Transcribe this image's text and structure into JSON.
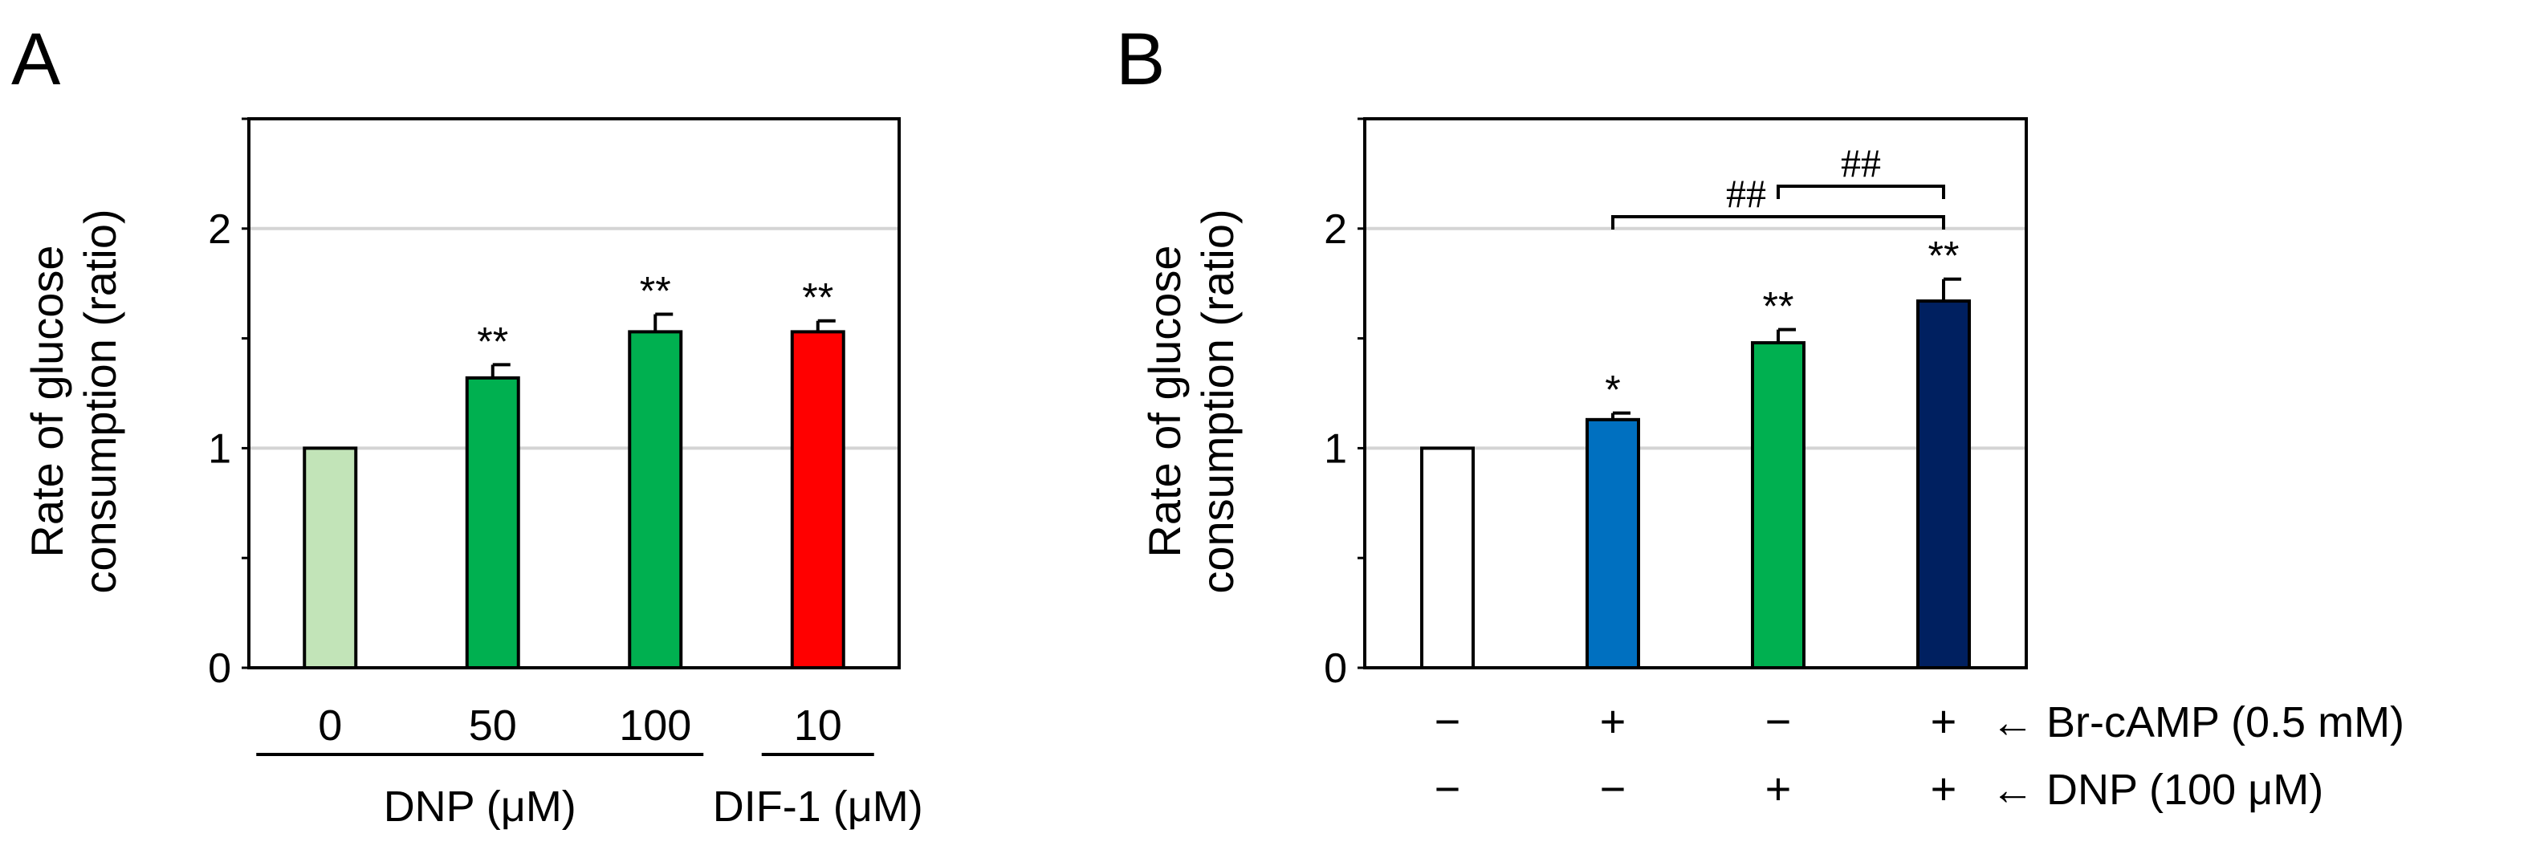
{
  "chart_data": [
    {
      "panel": "A",
      "type": "bar",
      "ylabel_lines": [
        "Rate of glucose",
        "consumption (ratio)"
      ],
      "ylim": [
        0,
        2.5
      ],
      "yticks": [
        0,
        1,
        2
      ],
      "grid": true,
      "categories": [
        "0",
        "50",
        "100",
        "10"
      ],
      "values": [
        1.0,
        1.32,
        1.53,
        1.53
      ],
      "errors": [
        0,
        0.06,
        0.08,
        0.05
      ],
      "colors": [
        "#c2e4b8",
        "#00b050",
        "#00b050",
        "#ff0000"
      ],
      "significance": [
        "",
        "**",
        "**",
        "**"
      ],
      "groups": [
        {
          "label": "DNP (μM)",
          "from": 0,
          "to": 2
        },
        {
          "label": "DIF-1 (μM)",
          "from": 3,
          "to": 3
        }
      ]
    },
    {
      "panel": "B",
      "type": "bar",
      "ylabel_lines": [
        "Rate of glucose",
        "consumption (ratio)"
      ],
      "ylim": [
        0,
        2.5
      ],
      "yticks": [
        0,
        1,
        2
      ],
      "grid": true,
      "values": [
        1.0,
        1.13,
        1.48,
        1.67
      ],
      "errors": [
        0,
        0.03,
        0.06,
        0.1
      ],
      "colors": [
        "#ffffff",
        "#0070c0",
        "#00b050",
        "#002060"
      ],
      "significance": [
        "",
        "*",
        "**",
        "**"
      ],
      "conditions": [
        {
          "label": "← Br-cAMP (0.5 mM)",
          "signs": [
            "−",
            "+",
            "−",
            "+"
          ]
        },
        {
          "label": "← DNP (100 μM)",
          "signs": [
            "−",
            "−",
            "+",
            "+"
          ]
        }
      ],
      "brackets": [
        {
          "from": 1,
          "to": 3,
          "label": "##",
          "level": 0
        },
        {
          "from": 2,
          "to": 3,
          "label": "##",
          "level": 1
        }
      ]
    }
  ],
  "panel_labels": [
    "A",
    "B"
  ]
}
